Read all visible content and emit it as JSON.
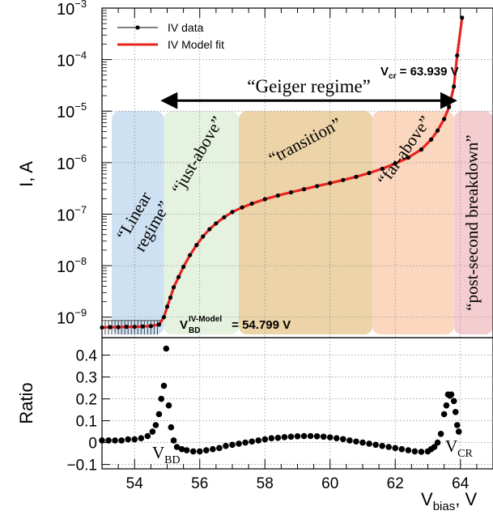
{
  "chart_data": [
    {
      "type": "line",
      "panel": "top",
      "ylabel": "I, A",
      "yscale": "log",
      "ylim": [
        4e-10,
        0.001
      ],
      "xlim": [
        53,
        65
      ],
      "grid": true,
      "legend_position": "top-left",
      "ytick_base": "10",
      "yticks": [
        {
          "value": 1e-09,
          "exp": "−9"
        },
        {
          "value": 1e-08,
          "exp": "−8"
        },
        {
          "value": 1e-07,
          "exp": "−7"
        },
        {
          "value": 1e-06,
          "exp": "−6"
        },
        {
          "value": 1e-05,
          "exp": "−5"
        },
        {
          "value": 0.0001,
          "exp": "−4"
        },
        {
          "value": 0.001,
          "exp": "−3"
        }
      ],
      "series": [
        {
          "name": "IV data",
          "style": "points",
          "color": "#000000"
        },
        {
          "name": "IV Model fit",
          "style": "line",
          "color": "#e8231f"
        }
      ],
      "points": [
        [
          53.0,
          6.3e-10
        ],
        [
          53.25,
          6.4e-10
        ],
        [
          53.5,
          6.4e-10
        ],
        [
          53.75,
          6.5e-10
        ],
        [
          54.0,
          6.5e-10
        ],
        [
          54.25,
          6.6e-10
        ],
        [
          54.5,
          6.7e-10
        ],
        [
          54.75,
          7.2e-10
        ],
        [
          54.9,
          1e-09
        ],
        [
          55.0,
          1.6e-09
        ],
        [
          55.1,
          2.4e-09
        ],
        [
          55.2,
          3.8e-09
        ],
        [
          55.35,
          6e-09
        ],
        [
          55.5,
          9.5e-09
        ],
        [
          55.7,
          1.6e-08
        ],
        [
          55.9,
          2.5e-08
        ],
        [
          56.1,
          3.7e-08
        ],
        [
          56.3,
          5.1e-08
        ],
        [
          56.5,
          6.6e-08
        ],
        [
          56.75,
          8.7e-08
        ],
        [
          57.0,
          1.1e-07
        ],
        [
          57.3,
          1.35e-07
        ],
        [
          57.6,
          1.6e-07
        ],
        [
          58.0,
          1.95e-07
        ],
        [
          58.4,
          2.3e-07
        ],
        [
          58.8,
          2.65e-07
        ],
        [
          59.2,
          3.05e-07
        ],
        [
          59.6,
          3.5e-07
        ],
        [
          60.0,
          4e-07
        ],
        [
          60.4,
          4.6e-07
        ],
        [
          60.8,
          5.3e-07
        ],
        [
          61.2,
          6.3e-07
        ],
        [
          61.6,
          7.6e-07
        ],
        [
          62.0,
          9.6e-07
        ],
        [
          62.4,
          1.25e-06
        ],
        [
          62.8,
          1.8e-06
        ],
        [
          63.1,
          2.8e-06
        ],
        [
          63.3,
          4.2e-06
        ],
        [
          63.5,
          7e-06
        ],
        [
          63.65,
          1.2e-05
        ],
        [
          63.8,
          3e-05
        ],
        [
          63.9,
          0.00012
        ],
        [
          64.05,
          0.00065
        ]
      ],
      "regions": [
        {
          "label": "“Linear regime”",
          "x0": 53.3,
          "x1": 54.9,
          "color": "#bcd7ee"
        },
        {
          "label": "“just-above”",
          "x0": 54.9,
          "x1": 57.2,
          "color": "#dcedd6"
        },
        {
          "label": "“transition”",
          "x0": 57.2,
          "x1": 61.3,
          "color": "#e6c48b"
        },
        {
          "label": "“far-above”",
          "x0": 61.3,
          "x1": 63.8,
          "color": "#f8c9a8"
        },
        {
          "label": "“post-second breakdown”",
          "x0": 63.8,
          "x1": 65.0,
          "color": "#f0bcc1"
        }
      ],
      "annotations": {
        "geiger": {
          "text": "“Geiger regime”",
          "x0": 54.9,
          "x1": 63.8,
          "y": 1.6e-05
        },
        "vcr": {
          "prefix": "V",
          "sub": "cr",
          "suffix": " = 63.939 V"
        },
        "vbd": {
          "prefix": "V",
          "sub": "BD",
          "sup": "IV-Model",
          "suffix": " = 54.799 V"
        }
      }
    },
    {
      "type": "scatter",
      "panel": "bottom",
      "ylabel": "Ratio",
      "xlabel_main": "V",
      "xlabel_sub": "bias",
      "xlabel_suffix": ", V",
      "xlim": [
        53,
        65
      ],
      "ylim": [
        -0.12,
        0.48
      ],
      "grid": true,
      "xticks": [
        54,
        56,
        58,
        60,
        62,
        64
      ],
      "yticks": [
        -0.1,
        0,
        0.1,
        0.2,
        0.3,
        0.4
      ],
      "ytick_labels": [
        "−0.1",
        "0",
        "0.1",
        "0.2",
        "0.3",
        "0.4"
      ],
      "points": [
        [
          53.0,
          0.01
        ],
        [
          53.2,
          0.01
        ],
        [
          53.4,
          0.01
        ],
        [
          53.6,
          0.01
        ],
        [
          53.8,
          0.015
        ],
        [
          54.0,
          0.015
        ],
        [
          54.2,
          0.02
        ],
        [
          54.4,
          0.03
        ],
        [
          54.55,
          0.05
        ],
        [
          54.65,
          0.08
        ],
        [
          54.75,
          0.13
        ],
        [
          54.82,
          0.2
        ],
        [
          54.9,
          0.26
        ],
        [
          54.97,
          0.43
        ],
        [
          55.05,
          0.17
        ],
        [
          55.12,
          0.07
        ],
        [
          55.2,
          0.01
        ],
        [
          55.3,
          -0.02
        ],
        [
          55.45,
          -0.03
        ],
        [
          55.6,
          -0.035
        ],
        [
          55.8,
          -0.04
        ],
        [
          56.0,
          -0.04
        ],
        [
          56.2,
          -0.035
        ],
        [
          56.4,
          -0.03
        ],
        [
          56.6,
          -0.025
        ],
        [
          56.8,
          -0.015
        ],
        [
          57.0,
          -0.01
        ],
        [
          57.2,
          -0.005
        ],
        [
          57.4,
          0.0
        ],
        [
          57.6,
          0.005
        ],
        [
          57.8,
          0.01
        ],
        [
          58.0,
          0.015
        ],
        [
          58.2,
          0.02
        ],
        [
          58.4,
          0.022
        ],
        [
          58.6,
          0.025
        ],
        [
          58.8,
          0.027
        ],
        [
          59.0,
          0.029
        ],
        [
          59.2,
          0.03
        ],
        [
          59.4,
          0.03
        ],
        [
          59.6,
          0.029
        ],
        [
          59.8,
          0.027
        ],
        [
          60.0,
          0.024
        ],
        [
          60.2,
          0.02
        ],
        [
          60.4,
          0.016
        ],
        [
          60.6,
          0.01
        ],
        [
          60.8,
          0.005
        ],
        [
          61.0,
          0.0
        ],
        [
          61.2,
          -0.005
        ],
        [
          61.4,
          -0.01
        ],
        [
          61.6,
          -0.015
        ],
        [
          61.8,
          -0.02
        ],
        [
          62.0,
          -0.025
        ],
        [
          62.2,
          -0.03
        ],
        [
          62.4,
          -0.035
        ],
        [
          62.6,
          -0.04
        ],
        [
          62.8,
          -0.042
        ],
        [
          63.0,
          -0.04
        ],
        [
          63.1,
          -0.03
        ],
        [
          63.2,
          -0.02
        ],
        [
          63.3,
          0.0
        ],
        [
          63.4,
          0.04
        ],
        [
          63.5,
          0.13
        ],
        [
          63.57,
          0.17
        ],
        [
          63.62,
          0.22
        ],
        [
          63.68,
          0.215
        ],
        [
          63.72,
          0.22
        ],
        [
          63.8,
          0.19
        ],
        [
          63.85,
          0.14
        ],
        [
          63.9,
          0.08
        ],
        [
          63.95,
          0.05
        ]
      ],
      "annotations": {
        "vbd": {
          "main": "V",
          "sub": "BD",
          "x": 55.0
        },
        "vcr": {
          "main": "V",
          "sub": "CR",
          "x": 63.7
        }
      }
    }
  ]
}
